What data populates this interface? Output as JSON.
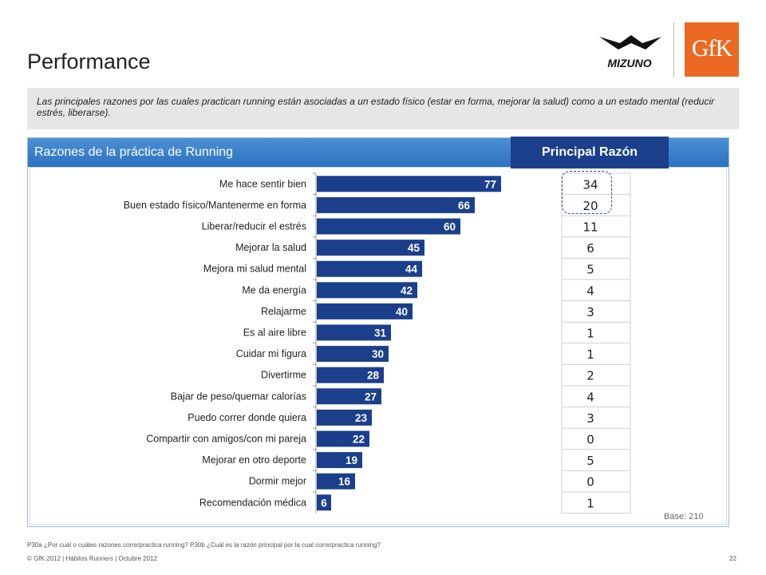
{
  "header": {
    "title": "Performance"
  },
  "logos": {
    "mizuno": "MIZUNO",
    "gfk": "GfK"
  },
  "summary": "Las principales razones por las cuales practican running están asociadas a un estado físico (estar en forma, mejorar la salud)  como a un estado mental (reducir estrés, liberarse).",
  "panel": {
    "title": "Razones de la práctica de Running",
    "tab_label": "Principal Razón"
  },
  "chart_data": [
    {
      "type": "bar",
      "orientation": "horizontal",
      "title": "Razones de la práctica de Running",
      "categories": [
        "Me hace sentir bien",
        "Buen estado físico/Mantenerme en forma",
        "Liberar/reducir el estrés",
        "Mejorar la salud",
        "Mejora mi salud mental",
        "Me da energía",
        "Relajarme",
        "Es al aire libre",
        "Cuidar mi figura",
        "Divertirme",
        "Bajar de peso/quemar calorías",
        "Puedo correr donde quiera",
        "Compartir con amigos/con mi pareja",
        "Mejorar en otro deporte",
        "Dormir mejor",
        "Recomendación médica"
      ],
      "values": [
        77,
        66,
        60,
        45,
        44,
        42,
        40,
        31,
        30,
        28,
        27,
        23,
        22,
        19,
        16,
        6
      ],
      "xlim": [
        0,
        100
      ],
      "bar_color": "#1b3f8b",
      "label_color": "#ffffff"
    },
    {
      "type": "table",
      "title": "Principal Razón",
      "values": [
        34,
        20,
        11,
        6,
        5,
        4,
        3,
        1,
        1,
        2,
        4,
        3,
        0,
        5,
        0,
        1
      ],
      "highlighted_rows": [
        0,
        1
      ]
    }
  ],
  "base_note": "Base: 210",
  "footnote": "P30a ¿Por cuál o cuáles razones corre/practica running? P30b ¿Cuál es la razón principal por la cual corre/practica running?",
  "footer": "© GfK 2012 | Hábitos Runners  | Octubre 2012",
  "page_number": "22",
  "colors": {
    "accent": "#2d72c0",
    "bar": "#1b3f8b",
    "gfk": "#ea6a24",
    "summary_bg": "#e6e6e6"
  }
}
